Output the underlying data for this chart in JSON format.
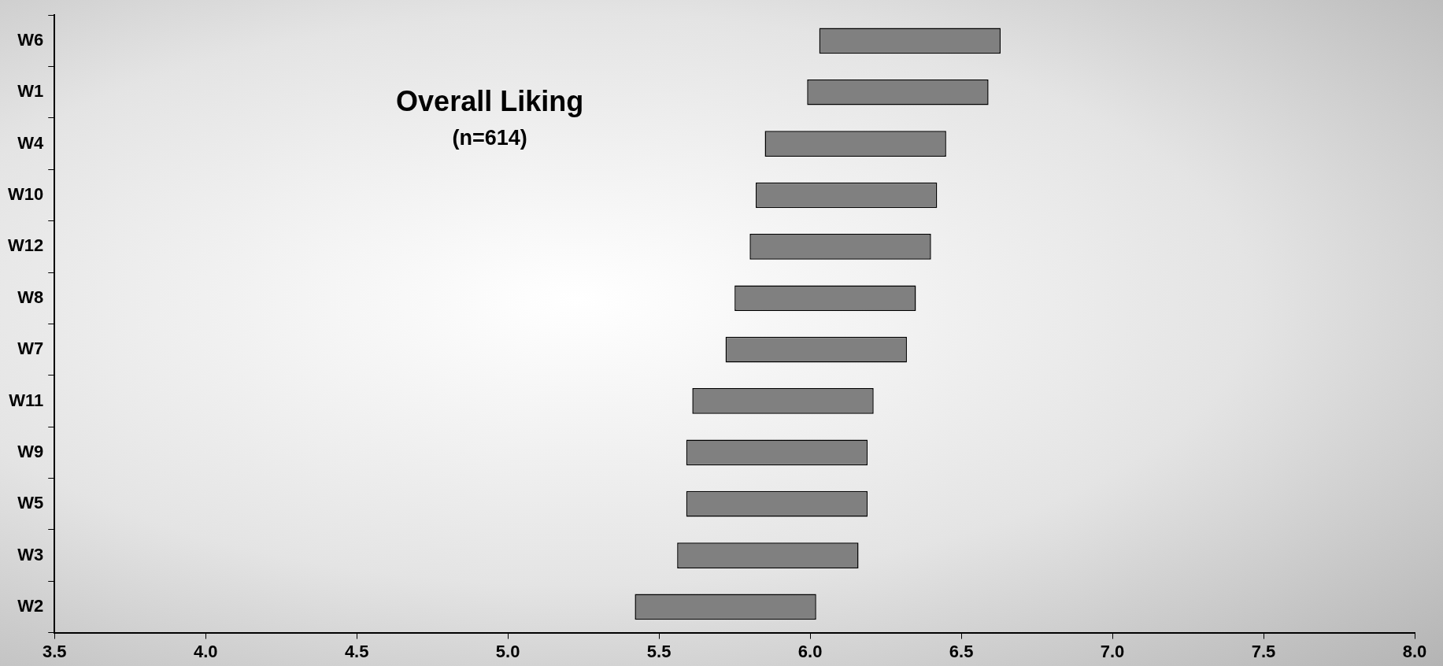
{
  "chart_data": {
    "type": "bar",
    "orientation": "horizontal",
    "title": "Overall Liking",
    "subtitle": "(n=614)",
    "categories": [
      "W6",
      "W1",
      "W4",
      "W10",
      "W12",
      "W8",
      "W7",
      "W11",
      "W9",
      "W5",
      "W3",
      "W2"
    ],
    "base": [
      6.03,
      5.99,
      5.85,
      5.82,
      5.8,
      5.75,
      5.72,
      5.61,
      5.59,
      5.59,
      5.56,
      5.42
    ],
    "values": [
      0.6,
      0.6,
      0.6,
      0.6,
      0.6,
      0.6,
      0.6,
      0.6,
      0.6,
      0.6,
      0.6,
      0.6
    ],
    "color": "#808080",
    "xlim": [
      3.5,
      8.0
    ],
    "xticks": [
      {
        "value": 3.5,
        "label": "3.5"
      },
      {
        "value": 4,
        "label": "4.0"
      },
      {
        "value": 4.5,
        "label": "4.5"
      },
      {
        "value": 5,
        "label": "5.0"
      },
      {
        "value": 5.5,
        "label": "5.5"
      },
      {
        "value": 6,
        "label": "6.0"
      },
      {
        "value": 6.5,
        "label": "6.5"
      },
      {
        "value": 7,
        "label": "7.0"
      },
      {
        "value": 7.5,
        "label": "7.5"
      },
      {
        "value": 8,
        "label": "8.0"
      }
    ],
    "grid": false,
    "legend": false
  }
}
